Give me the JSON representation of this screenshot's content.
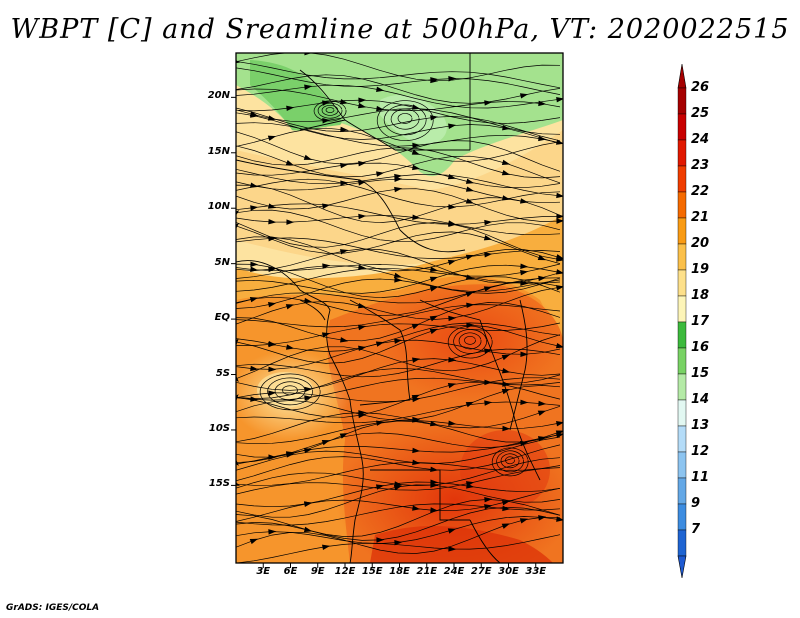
{
  "title": "WBPT [C] and Sreamline at 500hPa, VT: 2020022515",
  "credit": "GrADS: IGES/COLA",
  "map": {
    "variable": "Wet-bulb potential temperature (C)",
    "level": "500hPa",
    "valid_time": "2020022515",
    "lon_range": [
      0,
      36
    ],
    "lat_range": [
      -22,
      24
    ],
    "lat_ticks": [
      {
        "value": 20,
        "label": "20N"
      },
      {
        "value": 15,
        "label": "15N"
      },
      {
        "value": 10,
        "label": "10N"
      },
      {
        "value": 5,
        "label": "5N"
      },
      {
        "value": 0,
        "label": "EQ"
      },
      {
        "value": -5,
        "label": "5S"
      },
      {
        "value": -10,
        "label": "10S"
      },
      {
        "value": -15,
        "label": "15S"
      }
    ],
    "lon_ticks": [
      {
        "value": 3,
        "label": "3E"
      },
      {
        "value": 6,
        "label": "6E"
      },
      {
        "value": 9,
        "label": "9E"
      },
      {
        "value": 12,
        "label": "12E"
      },
      {
        "value": 15,
        "label": "15E"
      },
      {
        "value": 18,
        "label": "18E"
      },
      {
        "value": 21,
        "label": "21E"
      },
      {
        "value": 24,
        "label": "24E"
      },
      {
        "value": 27,
        "label": "27E"
      },
      {
        "value": 30,
        "label": "30E"
      },
      {
        "value": 33,
        "label": "33E"
      }
    ]
  },
  "colorbar": {
    "levels": [
      {
        "label": "26",
        "color": "#a50000"
      },
      {
        "label": "25",
        "color": "#c80000"
      },
      {
        "label": "24",
        "color": "#e11800"
      },
      {
        "label": "23",
        "color": "#f03c00"
      },
      {
        "label": "22",
        "color": "#f56a00"
      },
      {
        "label": "21",
        "color": "#f99b14"
      },
      {
        "label": "20",
        "color": "#fbc04a"
      },
      {
        "label": "19",
        "color": "#fde08a"
      },
      {
        "label": "18",
        "color": "#fdf5b8"
      },
      {
        "label": "17",
        "color": "#3cba3c"
      },
      {
        "label": "16",
        "color": "#78d264"
      },
      {
        "label": "15",
        "color": "#b4eaa6"
      },
      {
        "label": "14",
        "color": "#e2f8f2"
      },
      {
        "label": "13",
        "color": "#b4dcf8"
      },
      {
        "label": "12",
        "color": "#8cc4f0"
      },
      {
        "label": "11",
        "color": "#64a8e6"
      },
      {
        "label": "9",
        "color": "#3c8ce0"
      },
      {
        "label": "7",
        "color": "#1e64d2"
      }
    ],
    "bottom_color": "#1e5ad2"
  }
}
